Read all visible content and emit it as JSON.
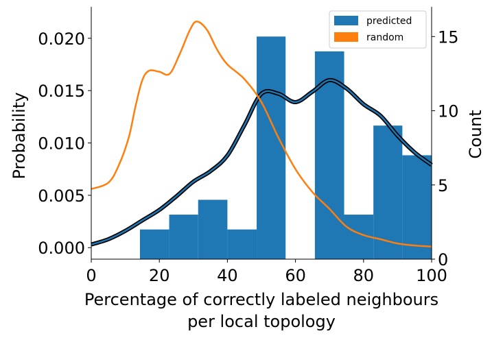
{
  "chart_data": {
    "type": "bar",
    "xlabel_lines": [
      "Percentage of correctly labeled neighbours",
      "per local topology"
    ],
    "ylabel_left": "Probability",
    "ylabel_right": "Count",
    "xlim": [
      0,
      100
    ],
    "ylim_left": [
      -0.0011,
      0.023
    ],
    "ylim_right": [
      0,
      17
    ],
    "x_ticks": [
      0,
      20,
      40,
      60,
      80,
      100
    ],
    "x_tick_labels": [
      "0",
      "20",
      "40",
      "60",
      "80",
      "100"
    ],
    "y_left_ticks": [
      0.0,
      0.005,
      0.01,
      0.015,
      0.02
    ],
    "y_left_tick_labels": [
      "0.000",
      "0.005",
      "0.010",
      "0.015",
      "0.020"
    ],
    "y_right_ticks": [
      0,
      5,
      10,
      15
    ],
    "y_right_tick_labels": [
      "0",
      "5",
      "10",
      "15"
    ],
    "grid": false,
    "legend": {
      "placement": "top-right",
      "entries": [
        "predicted",
        "random"
      ]
    },
    "histogram": {
      "name": "predicted",
      "color": "#1f77b4",
      "axis": "right",
      "bin_edges": [
        14.3,
        22.9,
        31.4,
        40.0,
        48.6,
        57.1,
        65.7,
        74.3,
        82.9,
        91.4,
        100.0
      ],
      "counts": [
        2,
        3,
        4,
        2,
        15,
        0,
        14,
        3,
        9,
        7
      ]
    },
    "series": [
      {
        "name": "predicted",
        "color": "#1f77b4",
        "axis": "left",
        "x": [
          0,
          5,
          10,
          15,
          20,
          25,
          30,
          35,
          40,
          45,
          50,
          55,
          60,
          65,
          70,
          75,
          80,
          85,
          90,
          95,
          100
        ],
        "y": [
          0.0003,
          0.0008,
          0.0016,
          0.0026,
          0.0036,
          0.0049,
          0.0063,
          0.0073,
          0.0088,
          0.0117,
          0.0147,
          0.0147,
          0.0139,
          0.0149,
          0.016,
          0.0152,
          0.0137,
          0.0126,
          0.0107,
          0.0091,
          0.0079
        ]
      },
      {
        "name": "random",
        "color": "#ff7f0e",
        "axis": "left",
        "x": [
          0,
          5,
          8,
          11,
          13,
          15,
          17,
          20,
          23,
          26,
          29,
          31,
          34,
          37,
          40,
          45,
          50,
          55,
          60,
          65,
          70,
          75,
          80,
          85,
          90,
          95,
          100
        ],
        "y": [
          0.0056,
          0.0062,
          0.0078,
          0.0105,
          0.0135,
          0.016,
          0.0169,
          0.0168,
          0.0166,
          0.0185,
          0.0208,
          0.0216,
          0.0208,
          0.0189,
          0.0175,
          0.0161,
          0.0139,
          0.0105,
          0.0075,
          0.0053,
          0.0037,
          0.002,
          0.0012,
          0.0008,
          0.0004,
          0.0002,
          0.0001
        ]
      }
    ]
  }
}
